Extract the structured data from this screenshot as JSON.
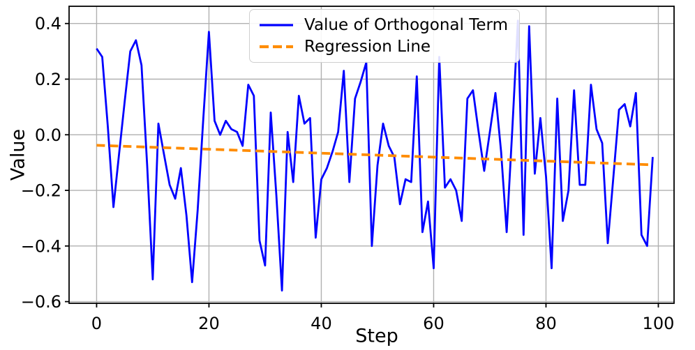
{
  "figure": {
    "background": "#ffffff"
  },
  "chart_data": {
    "type": "line",
    "title": "",
    "xlabel": "Step",
    "ylabel": "Value",
    "grid": true,
    "legend_position": "upper center",
    "x_range": [
      -4.9,
      102.8
    ],
    "y_range": [
      -0.606,
      0.462
    ],
    "x_ticks": [
      0,
      20,
      40,
      60,
      80,
      100
    ],
    "y_ticks": [
      0.4,
      0.2,
      0.0,
      -0.2,
      -0.4,
      -0.6
    ],
    "x_tick_labels": [
      "0",
      "20",
      "40",
      "60",
      "80",
      "100"
    ],
    "y_tick_labels": [
      "0.4",
      "0.2",
      "0.0",
      "−0.2",
      "−0.4",
      "−0.6"
    ],
    "colors": {
      "grid": "#b0b0b0",
      "spine": "#000000"
    },
    "series": [
      {
        "name": "Value of Orthogonal Term",
        "color": "#0000ff",
        "style": "solid",
        "width": 2.8,
        "x_start": 0,
        "x_step": 1,
        "n_points": 100,
        "y": [
          0.31,
          0.28,
          0.03,
          -0.26,
          -0.07,
          0.12,
          0.3,
          0.34,
          0.25,
          -0.11,
          -0.52,
          0.04,
          -0.07,
          -0.18,
          -0.23,
          -0.12,
          -0.29,
          -0.53,
          -0.27,
          0.06,
          0.37,
          0.05,
          0.0,
          0.05,
          0.02,
          0.01,
          -0.04,
          0.18,
          0.14,
          -0.38,
          -0.47,
          0.08,
          -0.22,
          -0.56,
          0.01,
          -0.17,
          0.14,
          0.04,
          0.06,
          -0.37,
          -0.16,
          -0.12,
          -0.06,
          0.01,
          0.23,
          -0.17,
          0.13,
          0.19,
          0.26,
          -0.4,
          -0.11,
          0.04,
          -0.04,
          -0.08,
          -0.25,
          -0.16,
          -0.17,
          0.21,
          -0.35,
          -0.24,
          -0.48,
          0.28,
          -0.19,
          -0.16,
          -0.2,
          -0.31,
          0.13,
          0.16,
          0.01,
          -0.13,
          0.01,
          0.15,
          -0.06,
          -0.35,
          0.02,
          0.41,
          -0.36,
          0.39,
          -0.14,
          0.06,
          -0.15,
          -0.48,
          0.13,
          -0.31,
          -0.2,
          0.16,
          -0.18,
          -0.18,
          0.18,
          0.02,
          -0.03,
          -0.39,
          -0.15,
          0.09,
          0.11,
          0.03,
          0.15,
          -0.36,
          -0.4,
          -0.08
        ]
      },
      {
        "name": "Regression Line",
        "color": "#ff8c00",
        "style": "dashed",
        "width": 3.8,
        "x": [
          0,
          99
        ],
        "y": [
          -0.038,
          -0.108
        ]
      }
    ]
  }
}
